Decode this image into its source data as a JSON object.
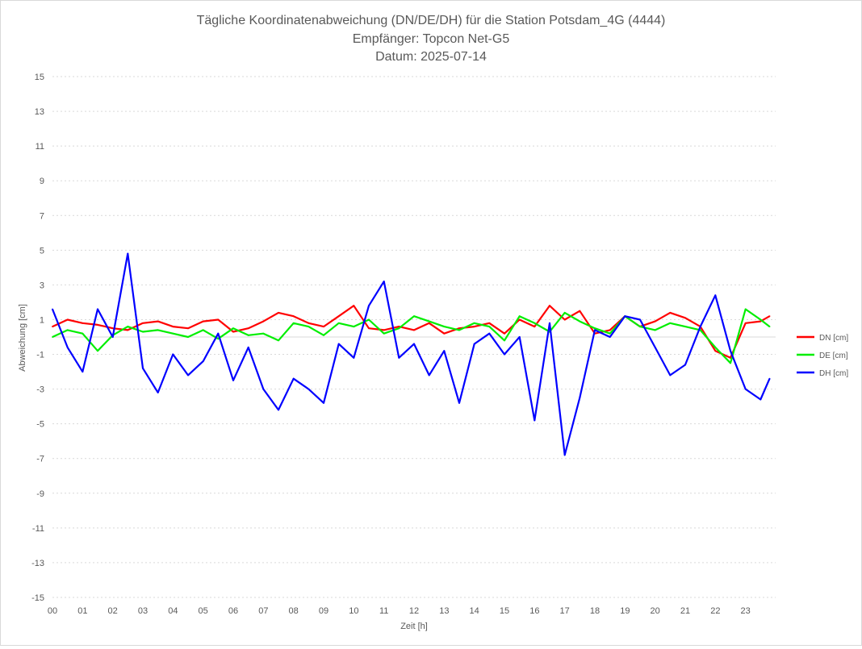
{
  "chart_data": {
    "type": "line",
    "title": "Tägliche Koordinatenabweichung (DN/DE/DH) für die Station Potsdam_4G (4444)",
    "subtitle_lines": [
      "Empfänger: Topcon Net-G5",
      "Datum: 2025-07-14"
    ],
    "xlabel": "Zeit [h]",
    "ylabel": "Abweichung [cm]",
    "xlim": [
      0,
      24
    ],
    "ylim": [
      -15,
      15
    ],
    "x_ticks": [
      "00",
      "01",
      "02",
      "03",
      "04",
      "05",
      "06",
      "07",
      "08",
      "09",
      "10",
      "11",
      "12",
      "13",
      "14",
      "15",
      "16",
      "17",
      "18",
      "19",
      "20",
      "21",
      "22",
      "23"
    ],
    "y_ticks": [
      15,
      13,
      11,
      9,
      7,
      5,
      3,
      1,
      -1,
      -3,
      -5,
      -7,
      -9,
      -11,
      -13,
      -15
    ],
    "grid": "horizontal dotted",
    "legend_position": "right",
    "x": [
      0.0,
      0.5,
      1.0,
      1.5,
      2.0,
      2.5,
      3.0,
      3.5,
      4.0,
      4.5,
      5.0,
      5.5,
      6.0,
      6.5,
      7.0,
      7.5,
      8.0,
      8.5,
      9.0,
      9.5,
      10.0,
      10.5,
      11.0,
      11.5,
      12.0,
      12.5,
      13.0,
      13.5,
      14.0,
      14.5,
      15.0,
      15.5,
      16.0,
      16.5,
      17.0,
      17.5,
      18.0,
      18.5,
      19.0,
      19.5,
      20.0,
      20.5,
      21.0,
      21.5,
      22.0,
      22.5,
      23.0,
      23.5,
      23.8
    ],
    "series": [
      {
        "name": "DN [cm]",
        "color": "#ff0000",
        "values": [
          0.6,
          1.0,
          0.8,
          0.7,
          0.5,
          0.4,
          0.8,
          0.9,
          0.6,
          0.5,
          0.9,
          1.0,
          0.3,
          0.5,
          0.9,
          1.4,
          1.2,
          0.8,
          0.6,
          1.2,
          1.8,
          0.5,
          0.4,
          0.6,
          0.4,
          0.8,
          0.2,
          0.5,
          0.6,
          0.8,
          0.2,
          1.0,
          0.6,
          1.8,
          1.0,
          1.5,
          0.2,
          0.4,
          1.2,
          0.6,
          0.9,
          1.4,
          1.1,
          0.6,
          -0.8,
          -1.2,
          0.8,
          0.9,
          1.2
        ]
      },
      {
        "name": "DE [cm]",
        "color": "#00ee00",
        "values": [
          0.0,
          0.4,
          0.2,
          -0.8,
          0.1,
          0.6,
          0.3,
          0.4,
          0.2,
          0.0,
          0.4,
          -0.1,
          0.5,
          0.1,
          0.2,
          -0.2,
          0.8,
          0.6,
          0.1,
          0.8,
          0.6,
          1.0,
          0.2,
          0.5,
          1.2,
          0.9,
          0.6,
          0.4,
          0.8,
          0.6,
          -0.2,
          1.2,
          0.8,
          0.3,
          1.4,
          0.9,
          0.5,
          0.2,
          1.2,
          0.6,
          0.4,
          0.8,
          0.6,
          0.4,
          -0.6,
          -1.5,
          1.6,
          1.0,
          0.6
        ]
      },
      {
        "name": "DH [cm]",
        "color": "#0000ff",
        "values": [
          1.6,
          -0.6,
          -2.0,
          1.6,
          0.0,
          4.8,
          -1.8,
          -3.2,
          -1.0,
          -2.2,
          -1.4,
          0.2,
          -2.5,
          -0.6,
          -3.0,
          -4.2,
          -2.4,
          -3.0,
          -3.8,
          -0.4,
          -1.2,
          1.8,
          3.2,
          -1.2,
          -0.4,
          -2.2,
          -0.8,
          -3.8,
          -0.4,
          0.2,
          -1.0,
          0.0,
          -4.8,
          0.8,
          -6.8,
          -3.5,
          0.4,
          0.0,
          1.2,
          1.0,
          -0.6,
          -2.2,
          -1.6,
          0.6,
          2.4,
          -0.8,
          -3.0,
          -3.6,
          -2.4
        ]
      }
    ]
  }
}
